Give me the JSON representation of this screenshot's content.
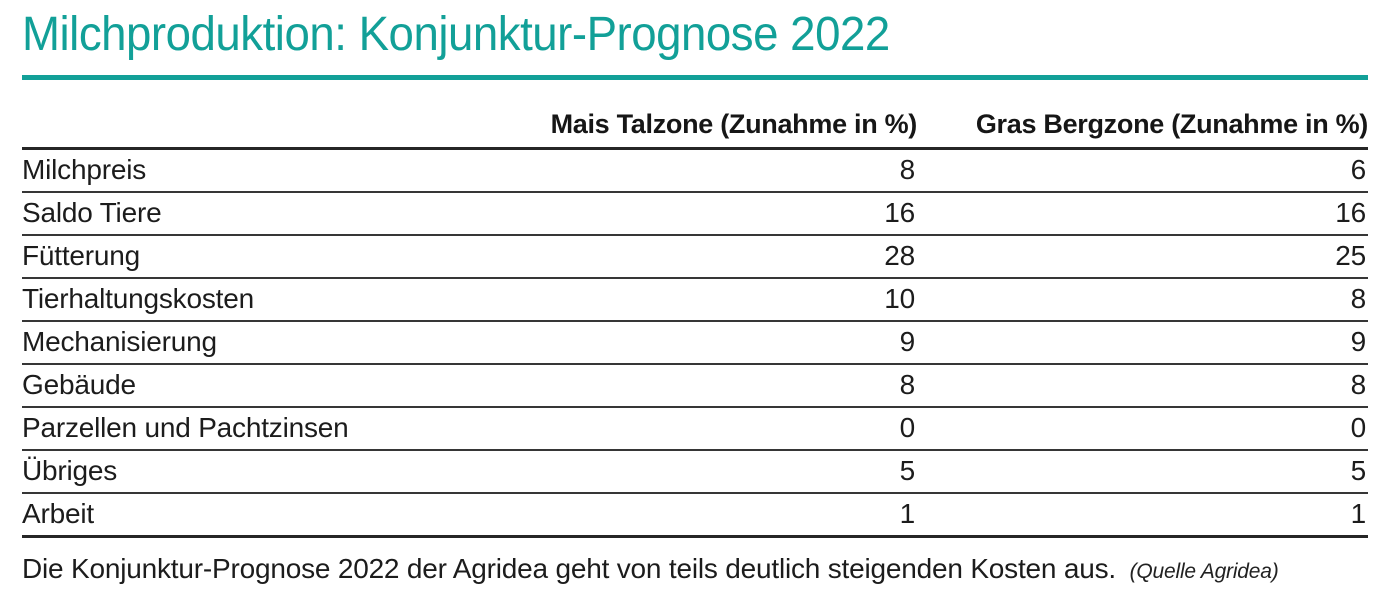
{
  "title": "Milchproduktion: Konjunktur-Prognose 2022",
  "accent_color": "#12a098",
  "table": {
    "headers": [
      "Mais Talzone (Zunahme in %)",
      "Gras Bergzone (Zunahme in %)"
    ],
    "rows": [
      {
        "label": "Milchpreis",
        "values": [
          "8",
          "6"
        ]
      },
      {
        "label": "Saldo Tiere",
        "values": [
          "16",
          "16"
        ]
      },
      {
        "label": "Fütterung",
        "values": [
          "28",
          "25"
        ]
      },
      {
        "label": "Tierhaltungskosten",
        "values": [
          "10",
          "8"
        ]
      },
      {
        "label": "Mechanisierung",
        "values": [
          "9",
          "9"
        ]
      },
      {
        "label": "Gebäude",
        "values": [
          "8",
          "8"
        ]
      },
      {
        "label": "Parzellen und Pachtzinsen",
        "values": [
          "0",
          "0"
        ]
      },
      {
        "label": "Übriges",
        "values": [
          "5",
          "5"
        ]
      },
      {
        "label": "Arbeit",
        "values": [
          "1",
          "1"
        ]
      }
    ]
  },
  "footer": {
    "text": "Die Konjunktur-Prognose 2022 der Agridea geht von teils deutlich steigenden Kosten aus.",
    "source": "(Quelle Agridea)"
  },
  "chart_data": {
    "type": "table",
    "title": "Milchproduktion: Konjunktur-Prognose 2022",
    "categories": [
      "Milchpreis",
      "Saldo Tiere",
      "Fütterung",
      "Tierhaltungskosten",
      "Mechanisierung",
      "Gebäude",
      "Parzellen und Pachtzinsen",
      "Übriges",
      "Arbeit"
    ],
    "series": [
      {
        "name": "Mais Talzone (Zunahme in %)",
        "values": [
          8,
          16,
          28,
          10,
          9,
          8,
          0,
          5,
          1
        ]
      },
      {
        "name": "Gras Bergzone (Zunahme in %)",
        "values": [
          6,
          16,
          25,
          8,
          9,
          8,
          0,
          5,
          1
        ]
      }
    ],
    "caption": "Die Konjunktur-Prognose 2022 der Agridea geht von teils deutlich steigenden Kosten aus.",
    "source": "(Quelle Agridea)"
  }
}
